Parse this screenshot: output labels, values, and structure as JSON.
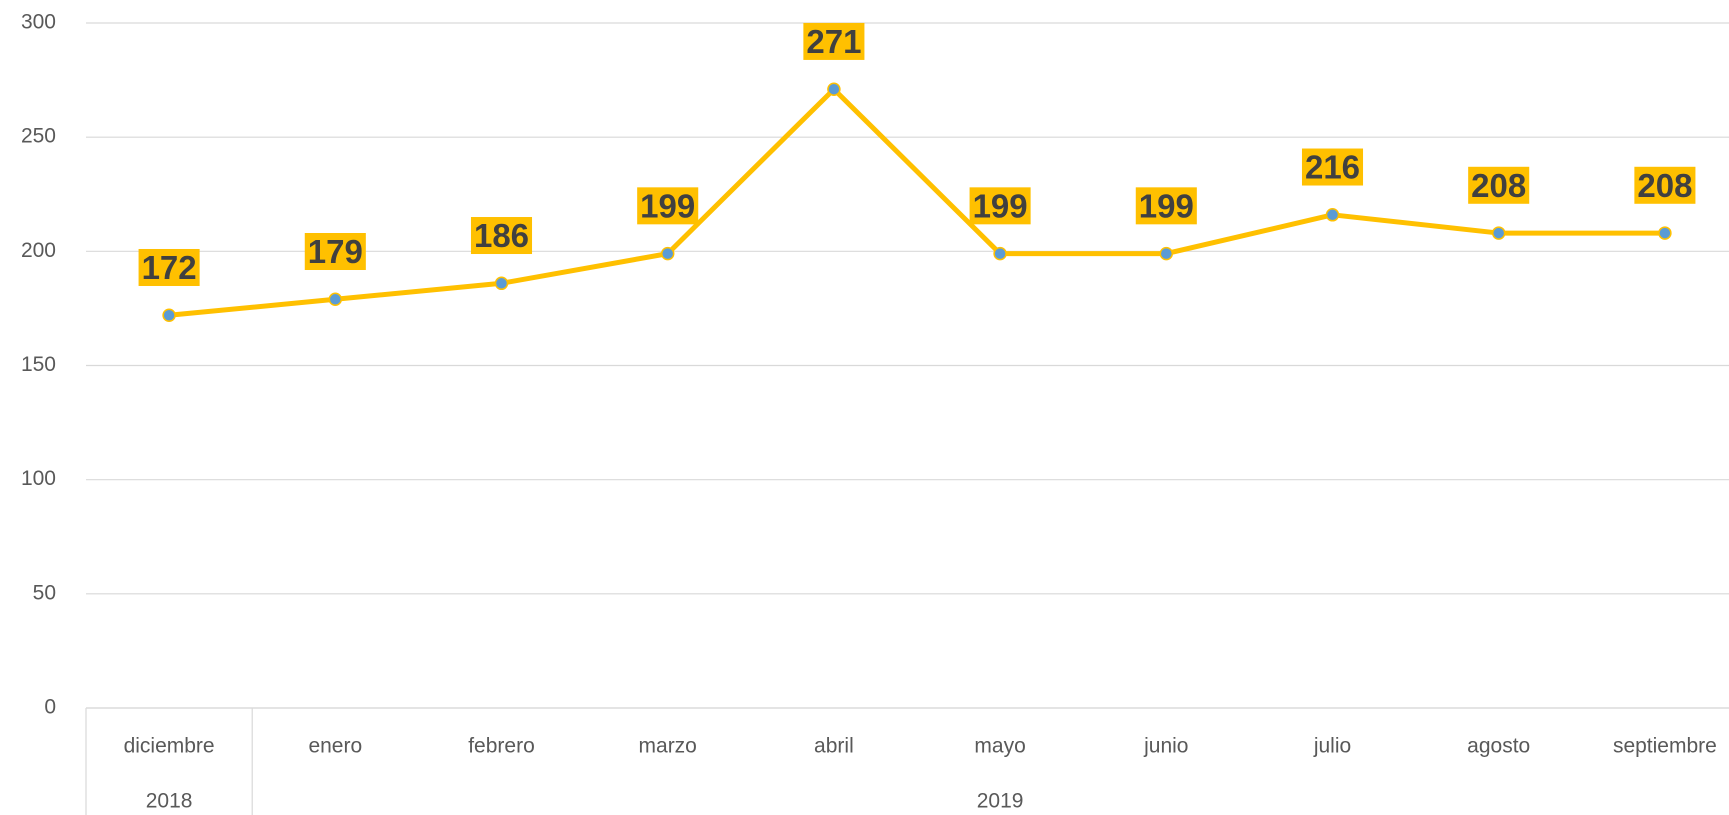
{
  "chart_data": {
    "type": "line",
    "categories": [
      "diciembre",
      "enero",
      "febrero",
      "marzo",
      "abril",
      "mayo",
      "junio",
      "julio",
      "agosto",
      "septiembre"
    ],
    "groups": [
      {
        "label": "2018",
        "span": 1
      },
      {
        "label": "2019",
        "span": 9
      }
    ],
    "series": [
      {
        "name": null,
        "color": "#ffc000",
        "marker_color": "#5b9bd5",
        "label_background": "#ffc000",
        "values": [
          172,
          179,
          186,
          199,
          271,
          199,
          199,
          216,
          208,
          208
        ]
      }
    ],
    "ylim": [
      0,
      300
    ],
    "yticks": [
      0,
      50,
      100,
      150,
      200,
      250,
      300
    ],
    "grid": true
  }
}
